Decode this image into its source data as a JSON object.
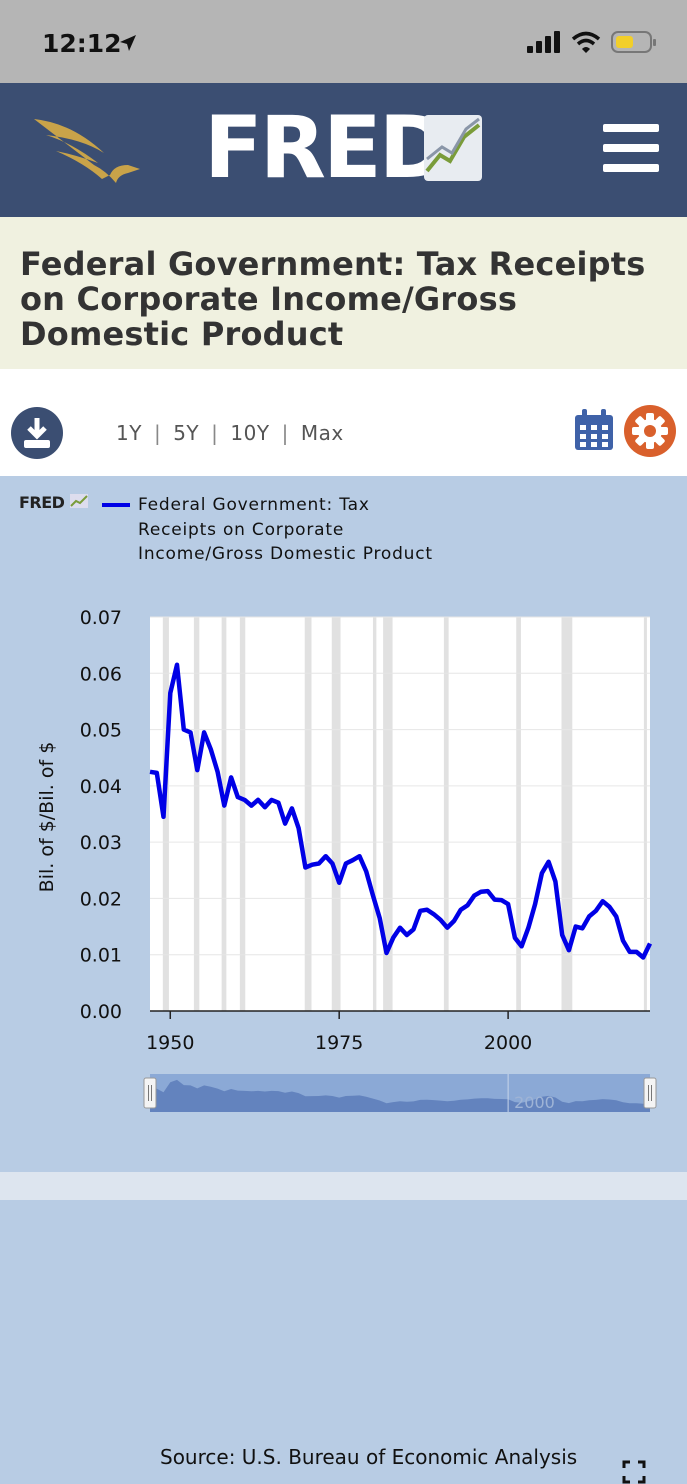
{
  "status_bar": {
    "time": "12:12"
  },
  "header": {
    "logo_text": "FRED"
  },
  "page": {
    "title": "Federal Government: Tax Receipts on Corporate Income/Gross Domestic Product"
  },
  "toolbar": {
    "ranges": [
      "1Y",
      "5Y",
      "10Y",
      "Max"
    ]
  },
  "chart_data": {
    "type": "line",
    "mini_logo": "FRED",
    "series": [
      {
        "name": "Federal Government: Tax Receipts on Corporate Income/Gross Domestic Product",
        "color": "#0000e6",
        "x": [
          1947,
          1948,
          1949,
          1950,
          1951,
          1952,
          1953,
          1954,
          1955,
          1956,
          1957,
          1958,
          1959,
          1960,
          1961,
          1962,
          1963,
          1964,
          1965,
          1966,
          1967,
          1968,
          1969,
          1970,
          1971,
          1972,
          1973,
          1974,
          1975,
          1976,
          1977,
          1978,
          1979,
          1980,
          1981,
          1982,
          1983,
          1984,
          1985,
          1986,
          1987,
          1988,
          1989,
          1990,
          1991,
          1992,
          1993,
          1994,
          1995,
          1996,
          1997,
          1998,
          1999,
          2000,
          2001,
          2002,
          2003,
          2004,
          2005,
          2006,
          2007,
          2008,
          2009,
          2010,
          2011,
          2012,
          2013,
          2014,
          2015,
          2016,
          2017,
          2018,
          2019,
          2020,
          2021
        ],
        "values": [
          0.0425,
          0.0423,
          0.0345,
          0.0565,
          0.0615,
          0.05,
          0.0495,
          0.0428,
          0.0495,
          0.0465,
          0.0425,
          0.0365,
          0.0415,
          0.038,
          0.0375,
          0.0365,
          0.0375,
          0.0362,
          0.0375,
          0.037,
          0.0333,
          0.036,
          0.0325,
          0.0255,
          0.026,
          0.0262,
          0.0275,
          0.0262,
          0.0228,
          0.0262,
          0.0268,
          0.0275,
          0.0248,
          0.0205,
          0.0165,
          0.0103,
          0.013,
          0.0148,
          0.0135,
          0.0145,
          0.0178,
          0.018,
          0.0172,
          0.0162,
          0.0148,
          0.016,
          0.018,
          0.0188,
          0.0205,
          0.0212,
          0.0213,
          0.0198,
          0.0197,
          0.019,
          0.013,
          0.0115,
          0.0148,
          0.019,
          0.0245,
          0.0265,
          0.023,
          0.0135,
          0.0108,
          0.015,
          0.0147,
          0.0168,
          0.0178,
          0.0195,
          0.0185,
          0.0168,
          0.0125,
          0.0105,
          0.0105,
          0.0095,
          0.012
        ]
      }
    ],
    "ylabel": "Bil. of $/Bil. of $",
    "ylim": [
      0,
      0.07
    ],
    "yticks": [
      "0.07",
      "0.06",
      "0.05",
      "0.04",
      "0.03",
      "0.02",
      "0.01",
      "0.00"
    ],
    "xlim": [
      1947,
      2021
    ],
    "xticks": [
      1950,
      1975,
      2000
    ],
    "recessions": [
      [
        1948.9,
        1949.8
      ],
      [
        1953.5,
        1954.3
      ],
      [
        1957.6,
        1958.3
      ],
      [
        1960.3,
        1961.1
      ],
      [
        1969.9,
        1970.9
      ],
      [
        1973.9,
        1975.2
      ],
      [
        1980.0,
        1980.5
      ],
      [
        1981.5,
        1982.9
      ],
      [
        1990.5,
        1991.2
      ],
      [
        2001.2,
        2001.9
      ],
      [
        2007.9,
        2009.5
      ],
      [
        2020.1,
        2020.4
      ]
    ],
    "navigator_label": "2000",
    "grid": true,
    "legend": "top"
  },
  "source": "Source: U.S. Bureau of Economic Analysis"
}
